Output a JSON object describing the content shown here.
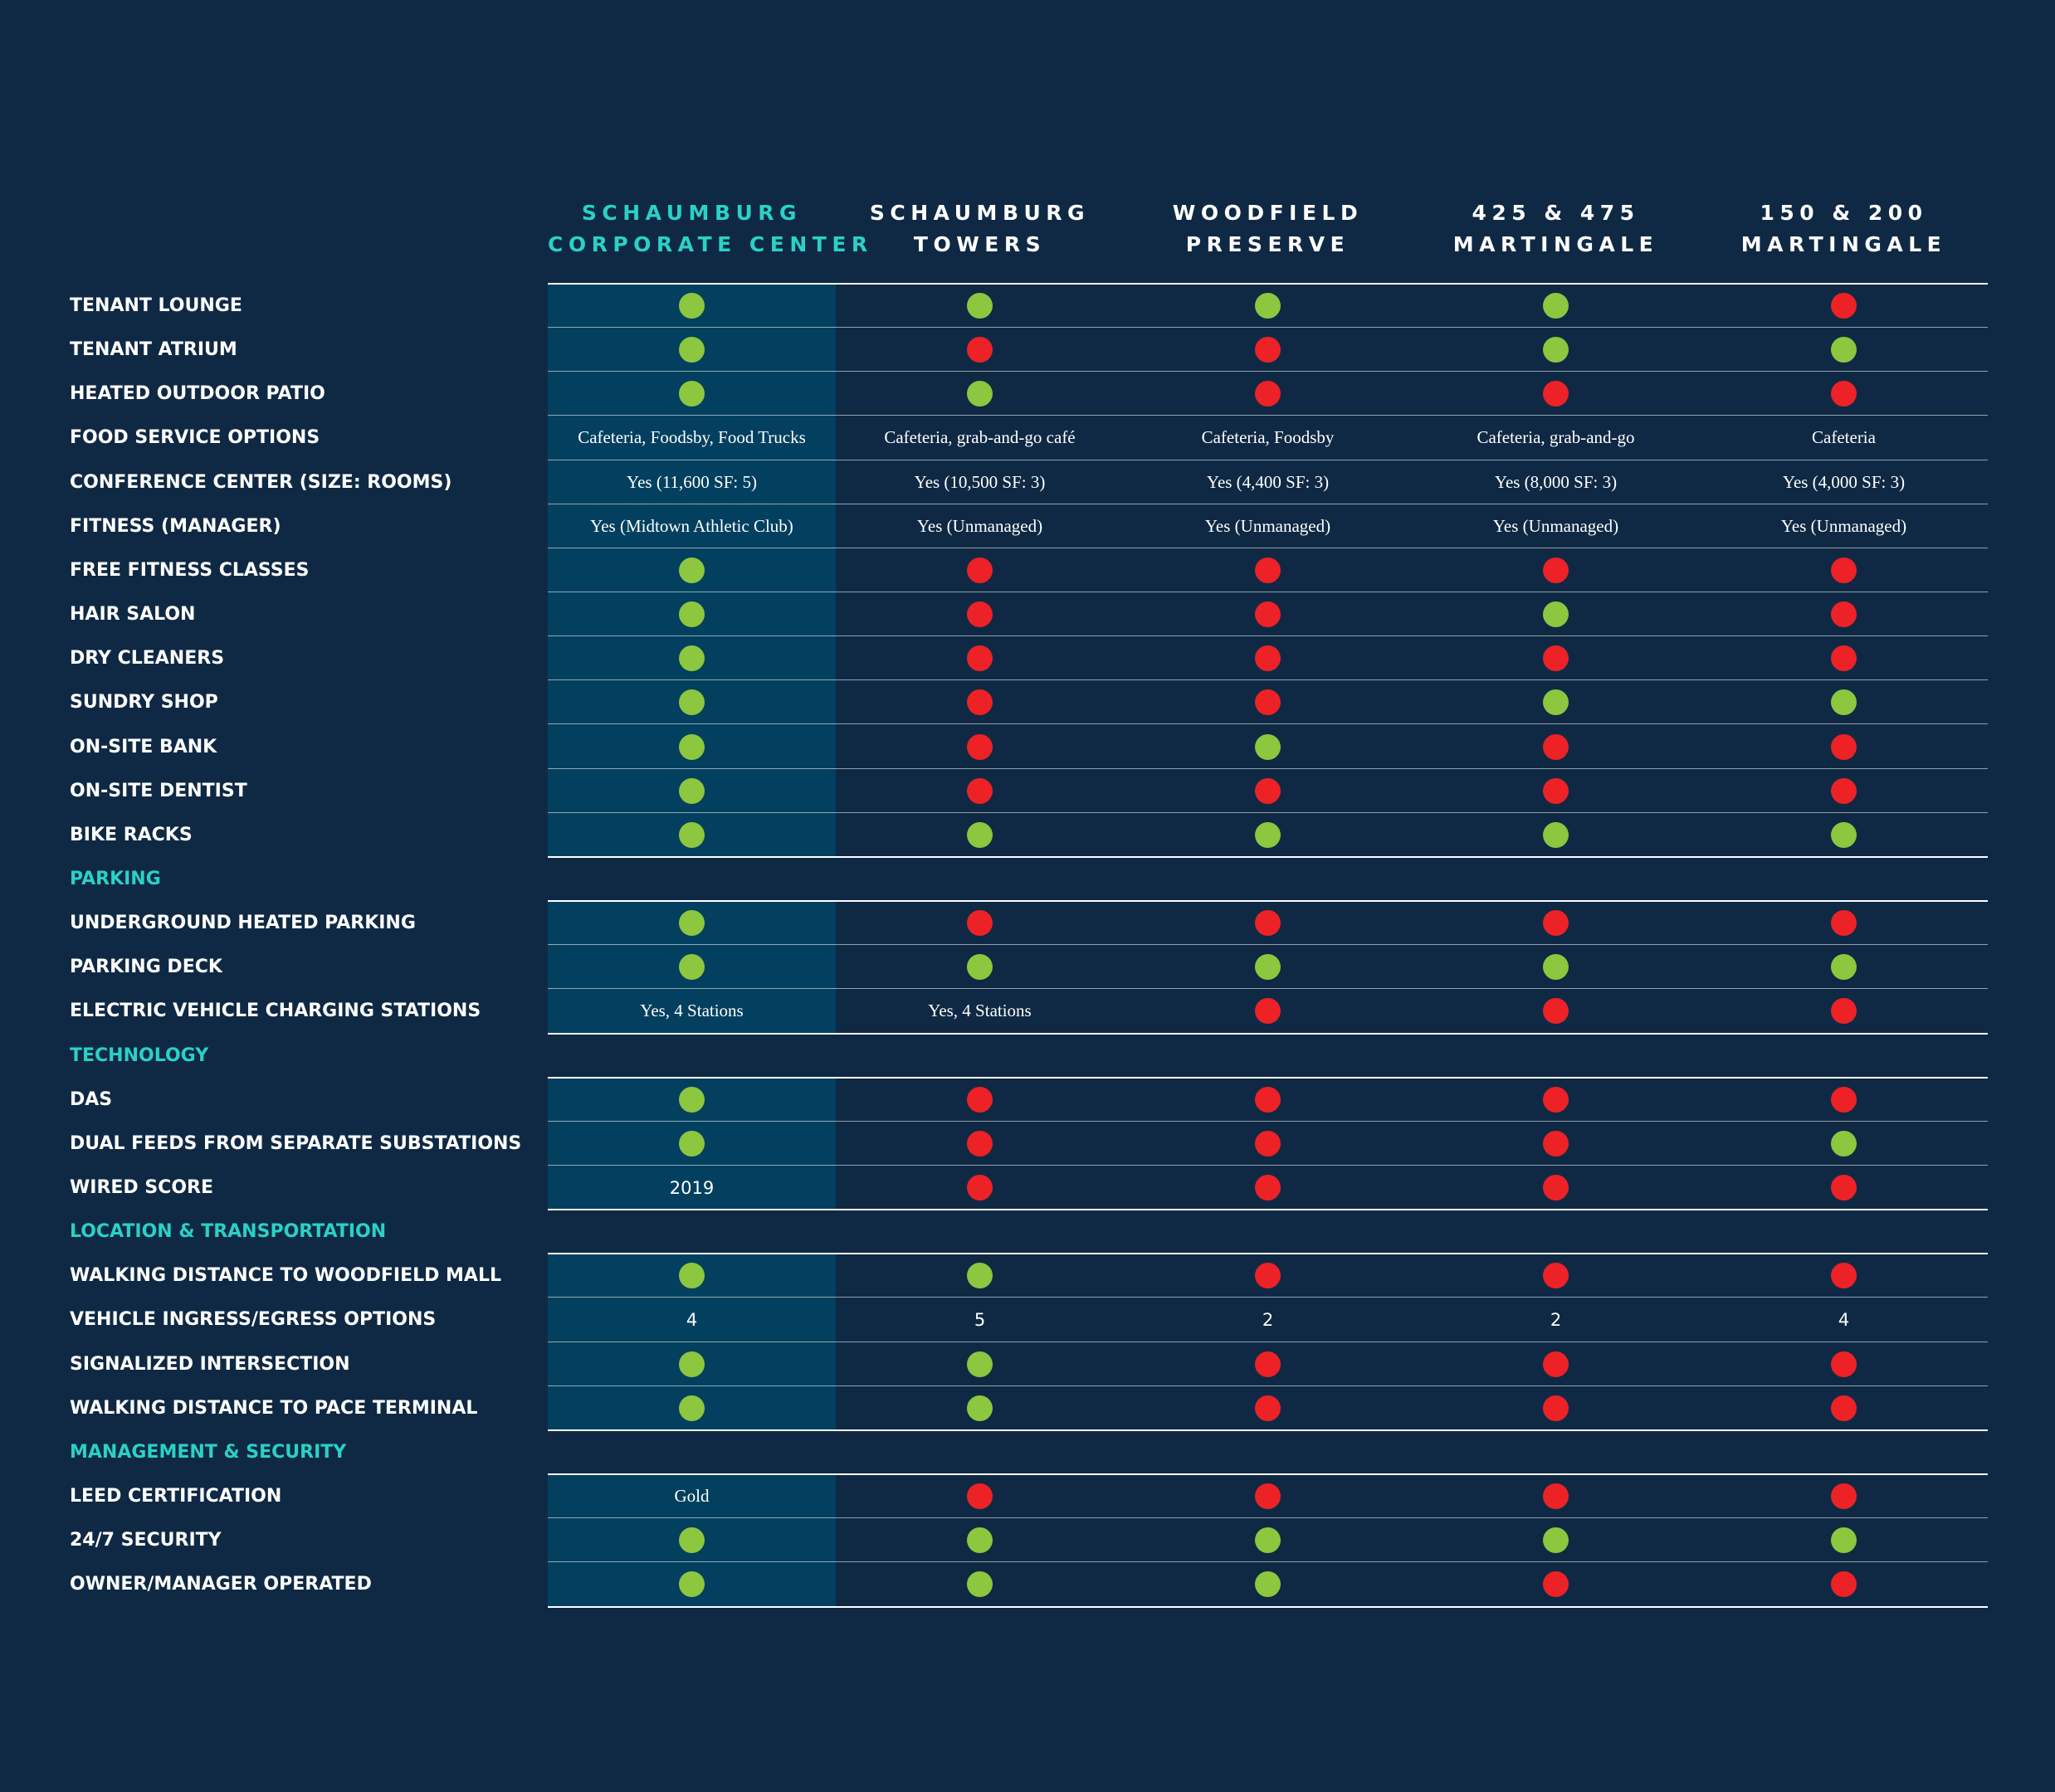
{
  "columns": [
    {
      "line1": "SCHAUMBURG",
      "line2": "CORPORATE CENTER",
      "featured": true
    },
    {
      "line1": "SCHAUMBURG",
      "line2": "TOWERS",
      "featured": false
    },
    {
      "line1": "WOODFIELD",
      "line2": "PRESERVE",
      "featured": false
    },
    {
      "line1": "425 & 475",
      "line2": "MARTINGALE",
      "featured": false
    },
    {
      "line1": "150 & 200",
      "line2": "MARTINGALE",
      "featured": false
    }
  ],
  "colors": {
    "background": "#0f2944",
    "highlight": "#03405f",
    "accent": "#2ad1c6",
    "yes": "#8dc63f",
    "no": "#ec2227"
  },
  "legend_values": {
    "Y": "green-dot (yes)",
    "N": "red-dot (no)"
  },
  "rows": [
    {
      "label": "TENANT LOUNGE",
      "values": [
        "Y",
        "Y",
        "Y",
        "Y",
        "N"
      ]
    },
    {
      "label": "TENANT ATRIUM",
      "values": [
        "Y",
        "N",
        "N",
        "Y",
        "Y"
      ]
    },
    {
      "label": "HEATED OUTDOOR PATIO",
      "values": [
        "Y",
        "Y",
        "N",
        "N",
        "N"
      ]
    },
    {
      "label": "FOOD SERVICE OPTIONS",
      "values": [
        "Cafeteria, Foodsby, Food Trucks",
        "Cafeteria, grab-and-go café",
        "Cafeteria, Foodsby",
        "Cafeteria, grab-and-go",
        "Cafeteria"
      ]
    },
    {
      "label": "CONFERENCE CENTER (SIZE: ROOMS)",
      "values": [
        "Yes (11,600 SF: 5)",
        "Yes (10,500 SF: 3)",
        "Yes (4,400 SF: 3)",
        "Yes (8,000 SF: 3)",
        "Yes (4,000 SF: 3)"
      ]
    },
    {
      "label": "FITNESS (MANAGER)",
      "values": [
        "Yes (Midtown Athletic Club)",
        "Yes (Unmanaged)",
        "Yes (Unmanaged)",
        "Yes (Unmanaged)",
        "Yes (Unmanaged)"
      ]
    },
    {
      "label": "FREE FITNESS CLASSES",
      "values": [
        "Y",
        "N",
        "N",
        "N",
        "N"
      ]
    },
    {
      "label": "HAIR SALON",
      "values": [
        "Y",
        "N",
        "N",
        "Y",
        "N"
      ]
    },
    {
      "label": "DRY CLEANERS",
      "values": [
        "Y",
        "N",
        "N",
        "N",
        "N"
      ]
    },
    {
      "label": "SUNDRY SHOP",
      "values": [
        "Y",
        "N",
        "N",
        "Y",
        "Y"
      ]
    },
    {
      "label": "ON-SITE BANK",
      "values": [
        "Y",
        "N",
        "Y",
        "N",
        "N"
      ]
    },
    {
      "label": "ON-SITE DENTIST",
      "values": [
        "Y",
        "N",
        "N",
        "N",
        "N"
      ]
    },
    {
      "label": "BIKE RACKS",
      "values": [
        "Y",
        "Y",
        "Y",
        "Y",
        "Y"
      ]
    },
    {
      "label": "PARKING",
      "section": true
    },
    {
      "label": "UNDERGROUND HEATED PARKING",
      "values": [
        "Y",
        "N",
        "N",
        "N",
        "N"
      ]
    },
    {
      "label": "PARKING DECK",
      "values": [
        "Y",
        "Y",
        "Y",
        "Y",
        "Y"
      ]
    },
    {
      "label": "ELECTRIC VEHICLE CHARGING STATIONS",
      "values": [
        "Yes, 4 Stations",
        "Yes, 4 Stations",
        "N",
        "N",
        "N"
      ]
    },
    {
      "label": "TECHNOLOGY",
      "section": true
    },
    {
      "label": "DAS",
      "values": [
        "Y",
        "N",
        "N",
        "N",
        "N"
      ]
    },
    {
      "label": "DUAL FEEDS FROM SEPARATE SUBSTATIONS",
      "values": [
        "Y",
        "N",
        "N",
        "N",
        "Y"
      ]
    },
    {
      "label": "WIRED SCORE",
      "values": [
        "2019",
        "N",
        "N",
        "N",
        "N"
      ]
    },
    {
      "label": "LOCATION & TRANSPORTATION",
      "section": true
    },
    {
      "label": "WALKING DISTANCE TO WOODFIELD MALL",
      "values": [
        "Y",
        "Y",
        "N",
        "N",
        "N"
      ]
    },
    {
      "label": "VEHICLE INGRESS/EGRESS OPTIONS",
      "values": [
        "4",
        "5",
        "2",
        "2",
        "4"
      ]
    },
    {
      "label": "SIGNALIZED INTERSECTION",
      "values": [
        "Y",
        "Y",
        "N",
        "N",
        "N"
      ]
    },
    {
      "label": "WALKING DISTANCE TO PACE TERMINAL",
      "values": [
        "Y",
        "Y",
        "N",
        "N",
        "N"
      ]
    },
    {
      "label": "MANAGEMENT & SECURITY",
      "section": true
    },
    {
      "label": "LEED CERTIFICATION",
      "values": [
        "Gold",
        "N",
        "N",
        "N",
        "N"
      ]
    },
    {
      "label": "24/7 SECURITY",
      "values": [
        "Y",
        "Y",
        "Y",
        "Y",
        "Y"
      ]
    },
    {
      "label": "OWNER/MANAGER OPERATED",
      "values": [
        "Y",
        "Y",
        "Y",
        "N",
        "N"
      ]
    }
  ]
}
